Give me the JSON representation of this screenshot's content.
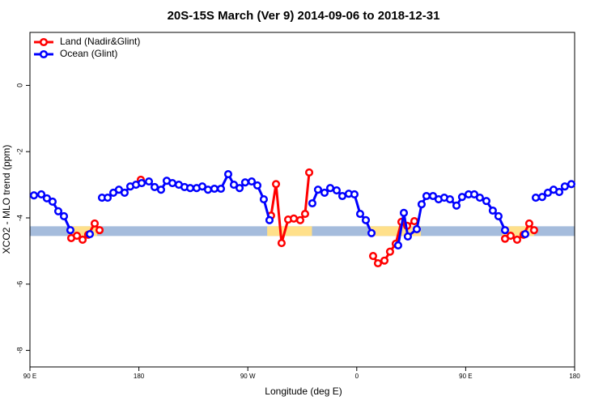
{
  "chart_data": {
    "type": "line",
    "title": "20S-15S March (Ver 9)   2014-09-06 to 2018-12-31",
    "x_label": "Longitude (deg E)",
    "y_label": "XCO2 - MLO trend (ppm)",
    "xlim": [
      90,
      540
    ],
    "xticks": [
      {
        "value": 90,
        "label": "90 E"
      },
      {
        "value": 180,
        "label": "180"
      },
      {
        "value": 270,
        "label": "90 W"
      },
      {
        "value": 360,
        "label": "0"
      },
      {
        "value": 450,
        "label": "90 E"
      },
      {
        "value": 540,
        "label": "180"
      }
    ],
    "ylim": [
      -8.5,
      1.6
    ],
    "yticks": [
      0,
      -2,
      -4,
      -6,
      -8
    ],
    "legend": "top-left",
    "band": {
      "value": -4.4,
      "color": "#a5bcdc",
      "land_color": "#ffe08a",
      "land_ranges": [
        [
          122,
          145.5
        ],
        [
          286,
          323
        ],
        [
          369.5,
          413
        ],
        [
          480,
          506.5
        ]
      ]
    },
    "series": [
      {
        "name": "Land (Nadir&Glint)",
        "color": "#ff0000",
        "x": [
          124.1,
          128.8,
          133.5,
          138.1,
          143.5,
          147.5,
          null,
          181.6,
          null,
          289.2,
          293.3,
          297.9,
          303.3,
          308.0,
          313.3,
          317.3,
          320.7,
          null,
          373.5,
          377.5,
          382.9,
          387.5,
          392.2,
          396.9,
          401.6,
          407.6,
          null,
          482.5,
          487.1,
          492.5,
          497.8,
          502.5,
          506.5
        ],
        "values": [
          -4.61,
          -4.54,
          -4.66,
          -4.51,
          -4.17,
          -4.37,
          null,
          -2.85,
          null,
          -3.93,
          -2.98,
          -4.76,
          -4.05,
          -4.02,
          -4.07,
          -3.88,
          -2.63,
          null,
          -5.15,
          -5.37,
          -5.29,
          -5.02,
          -4.78,
          -4.12,
          -4.24,
          -4.1,
          null,
          -4.63,
          -4.54,
          -4.66,
          -4.51,
          -4.17,
          -4.37
        ]
      },
      {
        "name": "Ocean (Glint)",
        "color": "#0000ff",
        "x": [
          93.3,
          99.4,
          104.0,
          108.7,
          113.4,
          118.1,
          123.4,
          null,
          139.5,
          null,
          149.5,
          154.2,
          158.9,
          163.5,
          168.2,
          172.9,
          177.6,
          182.3,
          188.3,
          193.0,
          198.3,
          203.0,
          207.7,
          213.0,
          217.7,
          222.4,
          227.7,
          232.4,
          237.1,
          242.4,
          247.8,
          253.8,
          258.5,
          263.2,
          267.8,
          273.2,
          277.9,
          283.2,
          287.9,
          null,
          323.3,
          328.0,
          333.4,
          338.1,
          343.4,
          348.1,
          353.4,
          358.1,
          362.8,
          367.5,
          372.2,
          null,
          394.2,
          398.9,
          402.2,
          409.6,
          413.6,
          417.6,
          423.0,
          427.6,
          432.3,
          437.0,
          442.4,
          447.0,
          452.4,
          457.1,
          461.7,
          467.1,
          472.4,
          477.1,
          482.5,
          null,
          499.2,
          null,
          507.9,
          513.2,
          517.9,
          522.6,
          527.3,
          531.9,
          537.3
        ],
        "values": [
          -3.32,
          -3.29,
          -3.41,
          -3.51,
          -3.8,
          -3.95,
          -4.37,
          null,
          -4.49,
          null,
          -3.39,
          -3.39,
          -3.24,
          -3.15,
          -3.24,
          -3.05,
          -3.0,
          -2.95,
          -2.9,
          -3.07,
          -3.15,
          -2.88,
          -2.95,
          -3.0,
          -3.07,
          -3.1,
          -3.1,
          -3.05,
          -3.15,
          -3.12,
          -3.12,
          -2.68,
          -3.0,
          -3.1,
          -2.93,
          -2.9,
          -3.02,
          -3.44,
          -4.07,
          null,
          -3.56,
          -3.15,
          -3.24,
          -3.1,
          -3.17,
          -3.34,
          -3.27,
          -3.29,
          -3.88,
          -4.07,
          -4.46,
          null,
          -4.83,
          -3.85,
          -4.56,
          -4.34,
          -3.59,
          -3.34,
          -3.34,
          -3.44,
          -3.39,
          -3.44,
          -3.63,
          -3.37,
          -3.29,
          -3.29,
          -3.39,
          -3.49,
          -3.78,
          -3.95,
          -4.37,
          null,
          -4.49,
          null,
          -3.39,
          -3.37,
          -3.24,
          -3.15,
          -3.22,
          -3.05,
          -2.98
        ]
      }
    ]
  }
}
